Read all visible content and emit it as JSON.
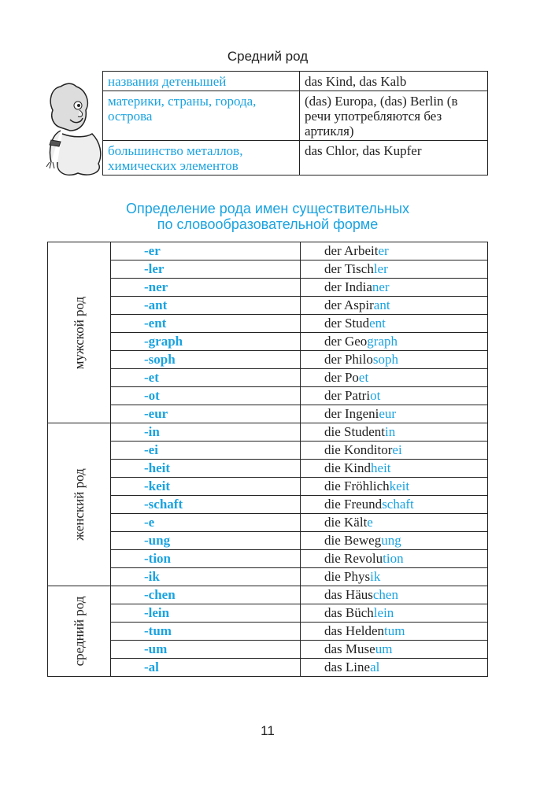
{
  "top_title": "Средний род",
  "top_table": [
    {
      "category": "названия детенышей",
      "examples": "das Kind, das Kalb"
    },
    {
      "category": "материки, страны, города, острова",
      "examples": "(das) Europa, (das) Berlin (в речи употребляются без артикля)"
    },
    {
      "category": "большинство металлов, химических элементов",
      "examples": "das Chlor, das Kupfer"
    }
  ],
  "heading": [
    "Определение рода имен существительных",
    "по словообразовательной форме"
  ],
  "groups": [
    {
      "label": "мужской род",
      "rows": [
        {
          "suffix": "-er",
          "stem": "der Arbeit",
          "ending": "er"
        },
        {
          "suffix": "-ler",
          "stem": "der Tisch",
          "ending": "ler"
        },
        {
          "suffix": "-ner",
          "stem": "der India",
          "ending": "ner"
        },
        {
          "suffix": "-ant",
          "stem": "der Aspir",
          "ending": "ant"
        },
        {
          "suffix": "-ent",
          "stem": "der Stud",
          "ending": "ent"
        },
        {
          "suffix": "-graph",
          "stem": "der Geo",
          "ending": "graph"
        },
        {
          "suffix": "-soph",
          "stem": "der Philo",
          "ending": "soph"
        },
        {
          "suffix": "-et",
          "stem": "der Po",
          "ending": "et"
        },
        {
          "suffix": "-ot",
          "stem": "der Patri",
          "ending": "ot"
        },
        {
          "suffix": "-eur",
          "stem": "der Ingeni",
          "ending": "eur"
        }
      ]
    },
    {
      "label": "женский род",
      "rows": [
        {
          "suffix": "-in",
          "stem": "die Student",
          "ending": "in"
        },
        {
          "suffix": "-ei",
          "stem": "die Konditor",
          "ending": "ei"
        },
        {
          "suffix": "-heit",
          "stem": "die Kind",
          "ending": "heit"
        },
        {
          "suffix": "-keit",
          "stem": "die Fröhlich",
          "ending": "keit"
        },
        {
          "suffix": "-schaft",
          "stem": "die Freund",
          "ending": "schaft"
        },
        {
          "suffix": "-e",
          "stem": "die Kält",
          "ending": "e"
        },
        {
          "suffix": "-ung",
          "stem": "die Beweg",
          "ending": "ung"
        },
        {
          "suffix": "-tion",
          "stem": "die Revolu",
          "ending": "tion"
        },
        {
          "suffix": "-ik",
          "stem": "die Phys",
          "ending": "ik"
        }
      ]
    },
    {
      "label": "средний род",
      "rows": [
        {
          "suffix": "-chen",
          "stem": "das Häus",
          "ending": "chen"
        },
        {
          "suffix": "-lein",
          "stem": "das Büch",
          "ending": "lein"
        },
        {
          "suffix": "-tum",
          "stem": "das Helden",
          "ending": "tum"
        },
        {
          "suffix": "-um",
          "stem": "das Muse",
          "ending": "um"
        },
        {
          "suffix": "-al",
          "stem": "das Line",
          "ending": "al"
        }
      ]
    }
  ],
  "page_number": "11",
  "colors": {
    "accent": "#1aa3e0",
    "text": "#222222"
  }
}
